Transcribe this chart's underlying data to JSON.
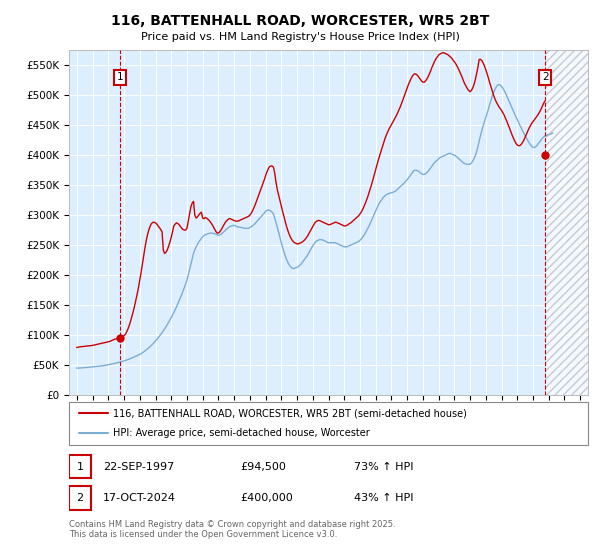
{
  "title": "116, BATTENHALL ROAD, WORCESTER, WR5 2BT",
  "subtitle": "Price paid vs. HM Land Registry's House Price Index (HPI)",
  "ylabel_ticks": [
    "£0",
    "£50K",
    "£100K",
    "£150K",
    "£200K",
    "£250K",
    "£300K",
    "£350K",
    "£400K",
    "£450K",
    "£500K",
    "£550K"
  ],
  "ylabel_values": [
    0,
    50000,
    100000,
    150000,
    200000,
    250000,
    300000,
    350000,
    400000,
    450000,
    500000,
    550000
  ],
  "xlim": [
    1994.5,
    2027.5
  ],
  "ylim": [
    0,
    575000
  ],
  "red_color": "#cc0000",
  "blue_color": "#7aadd4",
  "background_color": "#ddeeff",
  "grid_color": "#ffffff",
  "sale1_x": 1997.73,
  "sale1_y": 94500,
  "sale2_x": 2024.79,
  "sale2_y": 400000,
  "legend_line1": "116, BATTENHALL ROAD, WORCESTER, WR5 2BT (semi-detached house)",
  "legend_line2": "HPI: Average price, semi-detached house, Worcester",
  "annotation1_date": "22-SEP-1997",
  "annotation1_price": "£94,500",
  "annotation1_hpi": "73% ↑ HPI",
  "annotation2_date": "17-OCT-2024",
  "annotation2_price": "£400,000",
  "annotation2_hpi": "43% ↑ HPI",
  "footer": "Contains HM Land Registry data © Crown copyright and database right 2025.\nThis data is licensed under the Open Government Licence v3.0.",
  "hpi_years": [
    1995.0,
    1995.083,
    1995.167,
    1995.25,
    1995.333,
    1995.417,
    1995.5,
    1995.583,
    1995.667,
    1995.75,
    1995.833,
    1995.917,
    1996.0,
    1996.083,
    1996.167,
    1996.25,
    1996.333,
    1996.417,
    1996.5,
    1996.583,
    1996.667,
    1996.75,
    1996.833,
    1996.917,
    1997.0,
    1997.083,
    1997.167,
    1997.25,
    1997.333,
    1997.417,
    1997.5,
    1997.583,
    1997.667,
    1997.75,
    1997.833,
    1997.917,
    1998.0,
    1998.083,
    1998.167,
    1998.25,
    1998.333,
    1998.417,
    1998.5,
    1998.583,
    1998.667,
    1998.75,
    1998.833,
    1998.917,
    1999.0,
    1999.083,
    1999.167,
    1999.25,
    1999.333,
    1999.417,
    1999.5,
    1999.583,
    1999.667,
    1999.75,
    1999.833,
    1999.917,
    2000.0,
    2000.083,
    2000.167,
    2000.25,
    2000.333,
    2000.417,
    2000.5,
    2000.583,
    2000.667,
    2000.75,
    2000.833,
    2000.917,
    2001.0,
    2001.083,
    2001.167,
    2001.25,
    2001.333,
    2001.417,
    2001.5,
    2001.583,
    2001.667,
    2001.75,
    2001.833,
    2001.917,
    2002.0,
    2002.083,
    2002.167,
    2002.25,
    2002.333,
    2002.417,
    2002.5,
    2002.583,
    2002.667,
    2002.75,
    2002.833,
    2002.917,
    2003.0,
    2003.083,
    2003.167,
    2003.25,
    2003.333,
    2003.417,
    2003.5,
    2003.583,
    2003.667,
    2003.75,
    2003.833,
    2003.917,
    2004.0,
    2004.083,
    2004.167,
    2004.25,
    2004.333,
    2004.417,
    2004.5,
    2004.583,
    2004.667,
    2004.75,
    2004.833,
    2004.917,
    2005.0,
    2005.083,
    2005.167,
    2005.25,
    2005.333,
    2005.417,
    2005.5,
    2005.583,
    2005.667,
    2005.75,
    2005.833,
    2005.917,
    2006.0,
    2006.083,
    2006.167,
    2006.25,
    2006.333,
    2006.417,
    2006.5,
    2006.583,
    2006.667,
    2006.75,
    2006.833,
    2006.917,
    2007.0,
    2007.083,
    2007.167,
    2007.25,
    2007.333,
    2007.417,
    2007.5,
    2007.583,
    2007.667,
    2007.75,
    2007.833,
    2007.917,
    2008.0,
    2008.083,
    2008.167,
    2008.25,
    2008.333,
    2008.417,
    2008.5,
    2008.583,
    2008.667,
    2008.75,
    2008.833,
    2008.917,
    2009.0,
    2009.083,
    2009.167,
    2009.25,
    2009.333,
    2009.417,
    2009.5,
    2009.583,
    2009.667,
    2009.75,
    2009.833,
    2009.917,
    2010.0,
    2010.083,
    2010.167,
    2010.25,
    2010.333,
    2010.417,
    2010.5,
    2010.583,
    2010.667,
    2010.75,
    2010.833,
    2010.917,
    2011.0,
    2011.083,
    2011.167,
    2011.25,
    2011.333,
    2011.417,
    2011.5,
    2011.583,
    2011.667,
    2011.75,
    2011.833,
    2011.917,
    2012.0,
    2012.083,
    2012.167,
    2012.25,
    2012.333,
    2012.417,
    2012.5,
    2012.583,
    2012.667,
    2012.75,
    2012.833,
    2012.917,
    2013.0,
    2013.083,
    2013.167,
    2013.25,
    2013.333,
    2013.417,
    2013.5,
    2013.583,
    2013.667,
    2013.75,
    2013.833,
    2013.917,
    2014.0,
    2014.083,
    2014.167,
    2014.25,
    2014.333,
    2014.417,
    2014.5,
    2014.583,
    2014.667,
    2014.75,
    2014.833,
    2014.917,
    2015.0,
    2015.083,
    2015.167,
    2015.25,
    2015.333,
    2015.417,
    2015.5,
    2015.583,
    2015.667,
    2015.75,
    2015.833,
    2015.917,
    2016.0,
    2016.083,
    2016.167,
    2016.25,
    2016.333,
    2016.417,
    2016.5,
    2016.583,
    2016.667,
    2016.75,
    2016.833,
    2016.917,
    2017.0,
    2017.083,
    2017.167,
    2017.25,
    2017.333,
    2017.417,
    2017.5,
    2017.583,
    2017.667,
    2017.75,
    2017.833,
    2017.917,
    2018.0,
    2018.083,
    2018.167,
    2018.25,
    2018.333,
    2018.417,
    2018.5,
    2018.583,
    2018.667,
    2018.75,
    2018.833,
    2018.917,
    2019.0,
    2019.083,
    2019.167,
    2019.25,
    2019.333,
    2019.417,
    2019.5,
    2019.583,
    2019.667,
    2019.75,
    2019.833,
    2019.917,
    2020.0,
    2020.083,
    2020.167,
    2020.25,
    2020.333,
    2020.417,
    2020.5,
    2020.583,
    2020.667,
    2020.75,
    2020.833,
    2020.917,
    2021.0,
    2021.083,
    2021.167,
    2021.25,
    2021.333,
    2021.417,
    2021.5,
    2021.583,
    2021.667,
    2021.75,
    2021.833,
    2021.917,
    2022.0,
    2022.083,
    2022.167,
    2022.25,
    2022.333,
    2022.417,
    2022.5,
    2022.583,
    2022.667,
    2022.75,
    2022.833,
    2022.917,
    2023.0,
    2023.083,
    2023.167,
    2023.25,
    2023.333,
    2023.417,
    2023.5,
    2023.583,
    2023.667,
    2023.75,
    2023.833,
    2023.917,
    2024.0,
    2024.083,
    2024.167,
    2024.25,
    2024.333,
    2024.417,
    2024.5,
    2024.583,
    2024.667,
    2024.75,
    2024.833,
    2024.917,
    2025.0,
    2025.083,
    2025.167,
    2025.25
  ],
  "hpi_values": [
    44500,
    44600,
    44700,
    44900,
    45000,
    45200,
    45300,
    45500,
    45700,
    45900,
    46100,
    46300,
    46500,
    46700,
    46900,
    47200,
    47400,
    47700,
    48000,
    48300,
    48700,
    49000,
    49400,
    49800,
    50200,
    50600,
    51000,
    51500,
    52000,
    52500,
    53000,
    53500,
    54100,
    54700,
    55300,
    55900,
    56600,
    57300,
    58100,
    58900,
    59700,
    60600,
    61500,
    62400,
    63400,
    64400,
    65400,
    66400,
    67500,
    68800,
    70200,
    71700,
    73300,
    75000,
    76800,
    78700,
    80700,
    82800,
    85000,
    87300,
    89700,
    92300,
    95000,
    97800,
    100700,
    103700,
    106900,
    110200,
    113600,
    117200,
    121000,
    124900,
    129000,
    133200,
    137600,
    142100,
    146800,
    151700,
    156800,
    162000,
    167500,
    173100,
    179000,
    185000,
    191200,
    200000,
    209000,
    218000,
    227000,
    236000,
    242000,
    247000,
    251000,
    255000,
    258000,
    261000,
    264000,
    266000,
    267000,
    268000,
    269000,
    269500,
    270000,
    270000,
    269500,
    269000,
    268000,
    267000,
    266500,
    267000,
    268000,
    270000,
    272000,
    274000,
    276000,
    278000,
    280000,
    281000,
    282000,
    282500,
    283000,
    282000,
    281000,
    280000,
    280000,
    279500,
    279000,
    278500,
    278000,
    278000,
    278000,
    278000,
    279000,
    280500,
    282000,
    284000,
    286000,
    288500,
    291000,
    293500,
    296000,
    298500,
    301000,
    303500,
    306000,
    308000,
    308500,
    308000,
    307000,
    305000,
    302000,
    295000,
    287000,
    279000,
    271000,
    262000,
    254000,
    246000,
    239000,
    232000,
    226000,
    221000,
    217000,
    214000,
    212000,
    211000,
    211000,
    212000,
    213000,
    214000,
    216000,
    218000,
    221000,
    224000,
    227000,
    230000,
    233000,
    237000,
    241000,
    245000,
    249000,
    252000,
    255000,
    257000,
    258000,
    259000,
    259000,
    259000,
    258000,
    257000,
    256000,
    255000,
    254000,
    254000,
    254000,
    254000,
    254000,
    254000,
    253000,
    252000,
    251000,
    250000,
    249000,
    248000,
    247000,
    247000,
    247000,
    248000,
    249000,
    250000,
    251000,
    252000,
    253000,
    254000,
    255000,
    256000,
    258000,
    260000,
    263000,
    266000,
    270000,
    274000,
    278000,
    282000,
    287000,
    292000,
    297000,
    302000,
    307000,
    312000,
    317000,
    321000,
    324000,
    327000,
    330000,
    332000,
    334000,
    335000,
    336000,
    337000,
    337000,
    338000,
    339000,
    340000,
    342000,
    344000,
    346000,
    348000,
    350000,
    352000,
    354000,
    357000,
    359000,
    362000,
    365000,
    368000,
    371000,
    374000,
    375000,
    375000,
    374000,
    373000,
    371000,
    369000,
    368000,
    368000,
    369000,
    371000,
    373000,
    376000,
    379000,
    382000,
    385000,
    388000,
    390000,
    392000,
    394000,
    396000,
    397000,
    398000,
    399000,
    400000,
    401000,
    402000,
    403000,
    403000,
    402000,
    401000,
    400000,
    399000,
    397000,
    395000,
    393000,
    391000,
    389000,
    387000,
    386000,
    385000,
    385000,
    385000,
    385000,
    387000,
    390000,
    394000,
    399000,
    406000,
    414000,
    424000,
    433000,
    441000,
    449000,
    456000,
    463000,
    470000,
    477000,
    485000,
    492000,
    499000,
    505000,
    510000,
    514000,
    517000,
    518000,
    517000,
    515000,
    512000,
    508000,
    504000,
    499000,
    494000,
    489000,
    484000,
    479000,
    474000,
    469000,
    464000,
    460000,
    455000,
    450000,
    446000,
    441000,
    437000,
    433000,
    429000,
    425000,
    421000,
    418000,
    415000,
    413000,
    413000,
    414000,
    416000,
    419000,
    422000,
    425000,
    428000,
    430000,
    432000,
    433000,
    434000,
    434000,
    435000,
    436000,
    437000
  ],
  "red_years": [
    1995.0,
    1995.083,
    1995.167,
    1995.25,
    1995.333,
    1995.417,
    1995.5,
    1995.583,
    1995.667,
    1995.75,
    1995.833,
    1995.917,
    1996.0,
    1996.083,
    1996.167,
    1996.25,
    1996.333,
    1996.417,
    1996.5,
    1996.583,
    1996.667,
    1996.75,
    1996.833,
    1996.917,
    1997.0,
    1997.083,
    1997.167,
    1997.25,
    1997.333,
    1997.417,
    1997.5,
    1997.583,
    1997.667,
    1997.75,
    1997.833,
    1997.917,
    1998.0,
    1998.083,
    1998.167,
    1998.25,
    1998.333,
    1998.417,
    1998.5,
    1998.583,
    1998.667,
    1998.75,
    1998.833,
    1998.917,
    1999.0,
    1999.083,
    1999.167,
    1999.25,
    1999.333,
    1999.417,
    1999.5,
    1999.583,
    1999.667,
    1999.75,
    1999.833,
    1999.917,
    2000.0,
    2000.083,
    2000.167,
    2000.25,
    2000.333,
    2000.417,
    2000.5,
    2000.583,
    2000.667,
    2000.75,
    2000.833,
    2000.917,
    2001.0,
    2001.083,
    2001.167,
    2001.25,
    2001.333,
    2001.417,
    2001.5,
    2001.583,
    2001.667,
    2001.75,
    2001.833,
    2001.917,
    2002.0,
    2002.083,
    2002.167,
    2002.25,
    2002.333,
    2002.417,
    2002.5,
    2002.583,
    2002.667,
    2002.75,
    2002.833,
    2002.917,
    2003.0,
    2003.083,
    2003.167,
    2003.25,
    2003.333,
    2003.417,
    2003.5,
    2003.583,
    2003.667,
    2003.75,
    2003.833,
    2003.917,
    2004.0,
    2004.083,
    2004.167,
    2004.25,
    2004.333,
    2004.417,
    2004.5,
    2004.583,
    2004.667,
    2004.75,
    2004.833,
    2004.917,
    2005.0,
    2005.083,
    2005.167,
    2005.25,
    2005.333,
    2005.417,
    2005.5,
    2005.583,
    2005.667,
    2005.75,
    2005.833,
    2005.917,
    2006.0,
    2006.083,
    2006.167,
    2006.25,
    2006.333,
    2006.417,
    2006.5,
    2006.583,
    2006.667,
    2006.75,
    2006.833,
    2006.917,
    2007.0,
    2007.083,
    2007.167,
    2007.25,
    2007.333,
    2007.417,
    2007.5,
    2007.583,
    2007.667,
    2007.75,
    2007.833,
    2007.917,
    2008.0,
    2008.083,
    2008.167,
    2008.25,
    2008.333,
    2008.417,
    2008.5,
    2008.583,
    2008.667,
    2008.75,
    2008.833,
    2008.917,
    2009.0,
    2009.083,
    2009.167,
    2009.25,
    2009.333,
    2009.417,
    2009.5,
    2009.583,
    2009.667,
    2009.75,
    2009.833,
    2009.917,
    2010.0,
    2010.083,
    2010.167,
    2010.25,
    2010.333,
    2010.417,
    2010.5,
    2010.583,
    2010.667,
    2010.75,
    2010.833,
    2010.917,
    2011.0,
    2011.083,
    2011.167,
    2011.25,
    2011.333,
    2011.417,
    2011.5,
    2011.583,
    2011.667,
    2011.75,
    2011.833,
    2011.917,
    2012.0,
    2012.083,
    2012.167,
    2012.25,
    2012.333,
    2012.417,
    2012.5,
    2012.583,
    2012.667,
    2012.75,
    2012.833,
    2012.917,
    2013.0,
    2013.083,
    2013.167,
    2013.25,
    2013.333,
    2013.417,
    2013.5,
    2013.583,
    2013.667,
    2013.75,
    2013.833,
    2013.917,
    2014.0,
    2014.083,
    2014.167,
    2014.25,
    2014.333,
    2014.417,
    2014.5,
    2014.583,
    2014.667,
    2014.75,
    2014.833,
    2014.917,
    2015.0,
    2015.083,
    2015.167,
    2015.25,
    2015.333,
    2015.417,
    2015.5,
    2015.583,
    2015.667,
    2015.75,
    2015.833,
    2015.917,
    2016.0,
    2016.083,
    2016.167,
    2016.25,
    2016.333,
    2016.417,
    2016.5,
    2016.583,
    2016.667,
    2016.75,
    2016.833,
    2016.917,
    2017.0,
    2017.083,
    2017.167,
    2017.25,
    2017.333,
    2017.417,
    2017.5,
    2017.583,
    2017.667,
    2017.75,
    2017.833,
    2017.917,
    2018.0,
    2018.083,
    2018.167,
    2018.25,
    2018.333,
    2018.417,
    2018.5,
    2018.583,
    2018.667,
    2018.75,
    2018.833,
    2018.917,
    2019.0,
    2019.083,
    2019.167,
    2019.25,
    2019.333,
    2019.417,
    2019.5,
    2019.583,
    2019.667,
    2019.75,
    2019.833,
    2019.917,
    2020.0,
    2020.083,
    2020.167,
    2020.25,
    2020.333,
    2020.417,
    2020.5,
    2020.583,
    2020.667,
    2020.75,
    2020.833,
    2020.917,
    2021.0,
    2021.083,
    2021.167,
    2021.25,
    2021.333,
    2021.417,
    2021.5,
    2021.583,
    2021.667,
    2021.75,
    2021.833,
    2021.917,
    2022.0,
    2022.083,
    2022.167,
    2022.25,
    2022.333,
    2022.417,
    2022.5,
    2022.583,
    2022.667,
    2022.75,
    2022.833,
    2022.917,
    2023.0,
    2023.083,
    2023.167,
    2023.25,
    2023.333,
    2023.417,
    2023.5,
    2023.583,
    2023.667,
    2023.75,
    2023.833,
    2023.917,
    2024.0,
    2024.083,
    2024.167,
    2024.25,
    2024.333,
    2024.417,
    2024.5,
    2024.583,
    2024.667,
    2024.75
  ],
  "red_values": [
    79000,
    79500,
    80000,
    80200,
    80500,
    80700,
    81000,
    81200,
    81500,
    81700,
    82000,
    82200,
    82500,
    83000,
    83500,
    84000,
    84500,
    85000,
    85500,
    86000,
    86500,
    87000,
    87500,
    88000,
    88500,
    89000,
    90000,
    91000,
    92000,
    93000,
    93500,
    94000,
    94500,
    95000,
    96000,
    97000,
    98500,
    101000,
    105000,
    110000,
    116000,
    123000,
    131000,
    139000,
    148000,
    158000,
    168000,
    179000,
    191000,
    204000,
    218000,
    232000,
    246000,
    258000,
    268000,
    276000,
    282000,
    286000,
    288000,
    288000,
    287000,
    285000,
    282000,
    279000,
    276000,
    272000,
    241000,
    236000,
    238000,
    242000,
    248000,
    255000,
    263000,
    272000,
    282000,
    285000,
    287000,
    286000,
    284000,
    281000,
    278000,
    276000,
    275000,
    275000,
    278000,
    290000,
    303000,
    314000,
    320000,
    323000,
    300000,
    295000,
    297000,
    300000,
    303000,
    305000,
    295000,
    294000,
    296000,
    295000,
    293000,
    291000,
    288000,
    285000,
    281000,
    277000,
    273000,
    270000,
    270000,
    272000,
    275000,
    279000,
    283000,
    287000,
    290000,
    292000,
    294000,
    294000,
    293000,
    292000,
    291000,
    290000,
    290000,
    290000,
    291000,
    292000,
    293000,
    294000,
    295000,
    296000,
    297000,
    298000,
    300000,
    303000,
    307000,
    312000,
    317000,
    323000,
    329000,
    335000,
    341000,
    347000,
    353000,
    359000,
    366000,
    372000,
    377000,
    381000,
    382000,
    382000,
    380000,
    370000,
    354000,
    342000,
    333000,
    324000,
    315000,
    306000,
    298000,
    289000,
    281000,
    274000,
    268000,
    263000,
    259000,
    256000,
    254000,
    253000,
    252000,
    252000,
    253000,
    254000,
    255000,
    257000,
    259000,
    262000,
    265000,
    269000,
    273000,
    277000,
    281000,
    285000,
    288000,
    290000,
    291000,
    291000,
    290000,
    289000,
    288000,
    287000,
    286000,
    285000,
    284000,
    284000,
    285000,
    286000,
    287000,
    288000,
    288000,
    287000,
    286000,
    285000,
    284000,
    283000,
    282000,
    282000,
    283000,
    284000,
    286000,
    287000,
    289000,
    291000,
    293000,
    295000,
    297000,
    299000,
    302000,
    305000,
    309000,
    314000,
    319000,
    325000,
    331000,
    338000,
    345000,
    352000,
    360000,
    368000,
    376000,
    384000,
    392000,
    399000,
    406000,
    413000,
    420000,
    427000,
    433000,
    438000,
    443000,
    447000,
    451000,
    455000,
    459000,
    463000,
    467000,
    472000,
    477000,
    482000,
    488000,
    494000,
    500000,
    506000,
    512000,
    518000,
    523000,
    528000,
    532000,
    535000,
    536000,
    535000,
    533000,
    530000,
    527000,
    524000,
    522000,
    522000,
    524000,
    527000,
    531000,
    536000,
    541000,
    547000,
    552000,
    557000,
    561000,
    564000,
    567000,
    569000,
    570000,
    571000,
    571000,
    570000,
    569000,
    568000,
    566000,
    564000,
    562000,
    559000,
    556000,
    553000,
    549000,
    545000,
    540000,
    535000,
    530000,
    524000,
    519000,
    515000,
    511000,
    508000,
    506000,
    508000,
    512000,
    518000,
    526000,
    536000,
    547000,
    560000,
    560000,
    558000,
    554000,
    549000,
    543000,
    536000,
    529000,
    521000,
    514000,
    507000,
    500000,
    494000,
    489000,
    485000,
    481000,
    478000,
    475000,
    471000,
    467000,
    462000,
    457000,
    451000,
    446000,
    440000,
    434000,
    429000,
    424000,
    420000,
    417000,
    416000,
    416000,
    418000,
    421000,
    425000,
    430000,
    435000,
    440000,
    445000,
    449000,
    453000,
    456000,
    459000,
    462000,
    465000,
    468000,
    472000,
    476000,
    481000,
    486000,
    490000
  ]
}
